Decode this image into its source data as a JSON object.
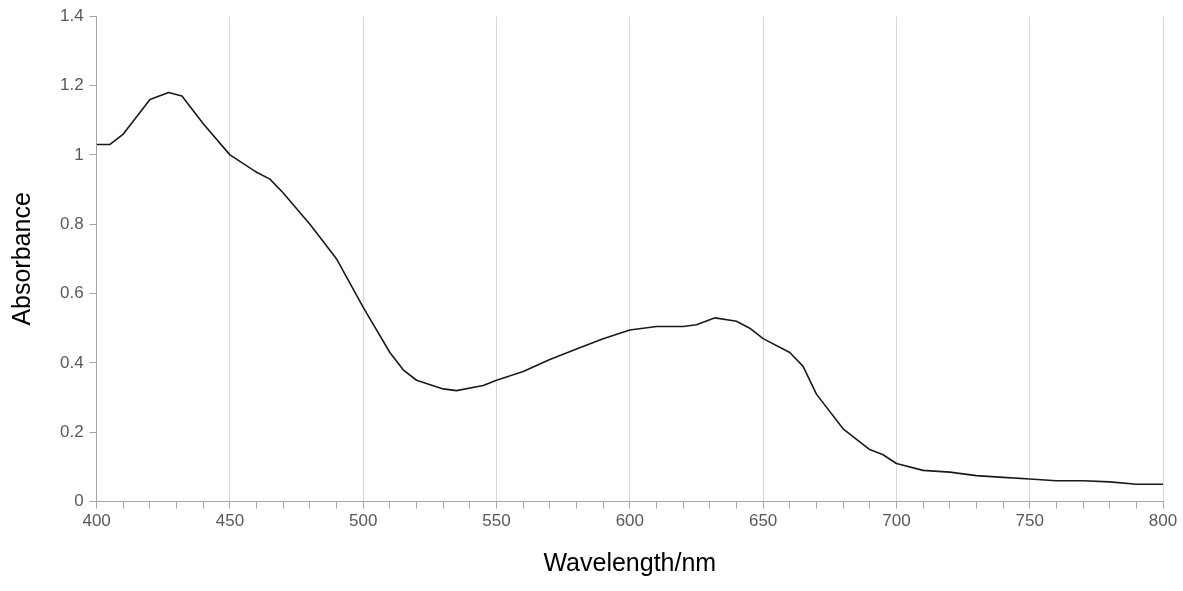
{
  "chart_data": {
    "type": "line",
    "xlabel": "Wavelength/nm",
    "ylabel": "Absorbance",
    "xlim": [
      400,
      800
    ],
    "xticks": [
      400,
      {
        "value": 410,
        "label": null
      },
      {
        "value": 420,
        "label": null
      },
      {
        "value": 430,
        "label": null
      },
      {
        "value": 440,
        "label": null
      },
      450,
      {
        "value": 460,
        "label": null
      },
      {
        "value": 470,
        "label": null
      },
      {
        "value": 480,
        "label": null
      },
      {
        "value": 490,
        "label": null
      },
      500,
      {
        "value": 510,
        "label": null
      },
      {
        "value": 520,
        "label": null
      },
      {
        "value": 530,
        "label": null
      },
      {
        "value": 540,
        "label": null
      },
      550,
      {
        "value": 560,
        "label": null
      },
      {
        "value": 570,
        "label": null
      },
      {
        "value": 580,
        "label": null
      },
      {
        "value": 590,
        "label": null
      },
      600,
      {
        "value": 610,
        "label": null
      },
      {
        "value": 620,
        "label": null
      },
      {
        "value": 630,
        "label": null
      },
      {
        "value": 640,
        "label": null
      },
      650,
      {
        "value": 660,
        "label": null
      },
      {
        "value": 670,
        "label": null
      },
      {
        "value": 680,
        "label": null
      },
      {
        "value": 690,
        "label": null
      },
      700,
      {
        "value": 710,
        "label": null
      },
      {
        "value": 720,
        "label": null
      },
      {
        "value": 730,
        "label": null
      },
      {
        "value": 740,
        "label": null
      },
      750,
      {
        "value": 760,
        "label": null
      },
      {
        "value": 770,
        "label": null
      },
      {
        "value": 780,
        "label": null
      },
      {
        "value": 790,
        "label": null
      },
      800
    ],
    "ylim": [
      0,
      1.4
    ],
    "yticks": [
      0,
      0.2,
      0.4,
      0.6,
      0.8,
      1,
      1.2,
      1.4
    ],
    "grid": "x",
    "legend": false,
    "marker": "none",
    "line_style": "solid",
    "series": [
      {
        "color": "#1a1a1a",
        "x": [
          400,
          405,
          410,
          415,
          420,
          427,
          432,
          440,
          450,
          460,
          465,
          470,
          480,
          490,
          500,
          510,
          515,
          520,
          530,
          535,
          545,
          550,
          560,
          570,
          580,
          590,
          600,
          610,
          620,
          625,
          632,
          640,
          645,
          650,
          660,
          665,
          670,
          680,
          690,
          695,
          700,
          710,
          720,
          730,
          740,
          750,
          760,
          770,
          780,
          790,
          800
        ],
        "values": [
          1.03,
          1.03,
          1.06,
          1.11,
          1.16,
          1.18,
          1.17,
          1.09,
          1.0,
          0.95,
          0.93,
          0.89,
          0.8,
          0.7,
          0.56,
          0.43,
          0.38,
          0.35,
          0.325,
          0.32,
          0.335,
          0.35,
          0.375,
          0.41,
          0.44,
          0.47,
          0.495,
          0.505,
          0.505,
          0.51,
          0.53,
          0.52,
          0.5,
          0.47,
          0.43,
          0.39,
          0.31,
          0.21,
          0.15,
          0.135,
          0.11,
          0.09,
          0.085,
          0.075,
          0.07,
          0.065,
          0.06,
          0.06,
          0.057,
          0.05,
          0.05
        ]
      }
    ]
  }
}
